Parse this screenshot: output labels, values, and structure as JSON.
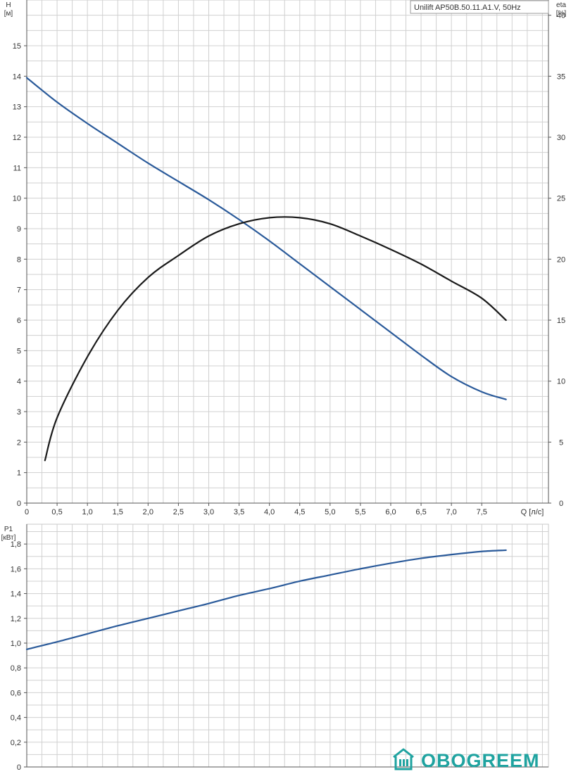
{
  "chart_data": [
    {
      "type": "line",
      "title": "Unilift AP50B.50.11.A1.V, 50Hz",
      "xlabel": "Q [л/с]",
      "ylabel": "H\n[м]",
      "ylabel_lines": [
        "H",
        "[м]"
      ],
      "y2label_lines": [
        "eta",
        "[%]"
      ],
      "xlim": [
        0,
        8.6
      ],
      "ylim": [
        0,
        16.5
      ],
      "y2lim": [
        0,
        41.25
      ],
      "x_ticks": [
        0,
        0.5,
        1.0,
        1.5,
        2.0,
        2.5,
        3.0,
        3.5,
        4.0,
        4.5,
        5.0,
        5.5,
        6.0,
        6.5,
        7.0,
        7.5
      ],
      "x_tick_labels": [
        "0",
        "0,5",
        "1,0",
        "1,5",
        "2,0",
        "2,5",
        "3,0",
        "3,5",
        "4,0",
        "4,5",
        "5,0",
        "5,5",
        "6,0",
        "6,5",
        "7,0",
        "7,5"
      ],
      "y_ticks": [
        0,
        1,
        2,
        3,
        4,
        5,
        6,
        7,
        8,
        9,
        10,
        11,
        12,
        13,
        14,
        15
      ],
      "y_tick_labels": [
        "0",
        "1",
        "2",
        "3",
        "4",
        "5",
        "6",
        "7",
        "8",
        "9",
        "10",
        "11",
        "12",
        "13",
        "14",
        "15"
      ],
      "y2_ticks": [
        0,
        5,
        10,
        15,
        20,
        25,
        30,
        35,
        40
      ],
      "y2_tick_labels": [
        "0",
        "5",
        "10",
        "15",
        "20",
        "25",
        "30",
        "35",
        "40"
      ],
      "grid": true,
      "series": [
        {
          "axis": "left",
          "color": "#2a5a9a",
          "x": [
            0,
            0.5,
            1.0,
            1.5,
            2.0,
            2.5,
            3.0,
            3.5,
            4.0,
            4.5,
            5.0,
            5.5,
            6.0,
            6.5,
            7.0,
            7.5,
            7.9
          ],
          "y": [
            13.95,
            13.15,
            12.45,
            11.8,
            11.15,
            10.55,
            9.95,
            9.3,
            8.6,
            7.85,
            7.1,
            6.35,
            5.6,
            4.85,
            4.15,
            3.65,
            3.4
          ]
        },
        {
          "axis": "right",
          "color": "#1a1a1a",
          "x": [
            0.3,
            0.5,
            1.0,
            1.5,
            2.0,
            2.5,
            3.0,
            3.5,
            4.0,
            4.5,
            5.0,
            5.5,
            6.0,
            6.5,
            7.0,
            7.5,
            7.9
          ],
          "y": [
            3.5,
            7.0,
            12.0,
            15.8,
            18.5,
            20.3,
            21.9,
            22.9,
            23.4,
            23.4,
            22.9,
            21.9,
            20.8,
            19.6,
            18.2,
            16.8,
            15.0
          ]
        }
      ]
    },
    {
      "type": "line",
      "title": "",
      "xlabel": "",
      "ylabel_lines": [
        "P1",
        "[кВт]"
      ],
      "xlim": [
        0,
        8.6
      ],
      "ylim": [
        0,
        1.96
      ],
      "y_ticks": [
        0,
        0.2,
        0.4,
        0.6,
        0.8,
        1.0,
        1.2,
        1.4,
        1.6,
        1.8
      ],
      "y_tick_labels": [
        "0",
        "0,2",
        "0,4",
        "0,6",
        "0,8",
        "1,0",
        "1,2",
        "1,4",
        "1,6",
        "1,8"
      ],
      "grid": true,
      "series": [
        {
          "axis": "left",
          "color": "#2a5a9a",
          "x": [
            0,
            0.5,
            1.0,
            1.5,
            2.0,
            2.5,
            3.0,
            3.5,
            4.0,
            4.5,
            5.0,
            5.5,
            6.0,
            6.5,
            7.0,
            7.5,
            7.9
          ],
          "y": [
            0.95,
            1.01,
            1.075,
            1.14,
            1.2,
            1.26,
            1.32,
            1.385,
            1.44,
            1.5,
            1.55,
            1.6,
            1.645,
            1.685,
            1.715,
            1.74,
            1.75
          ]
        }
      ]
    }
  ],
  "watermark": {
    "text": "OBOGREEM",
    "color": "#1fa3a0",
    "icon": "house-radiator-icon"
  }
}
